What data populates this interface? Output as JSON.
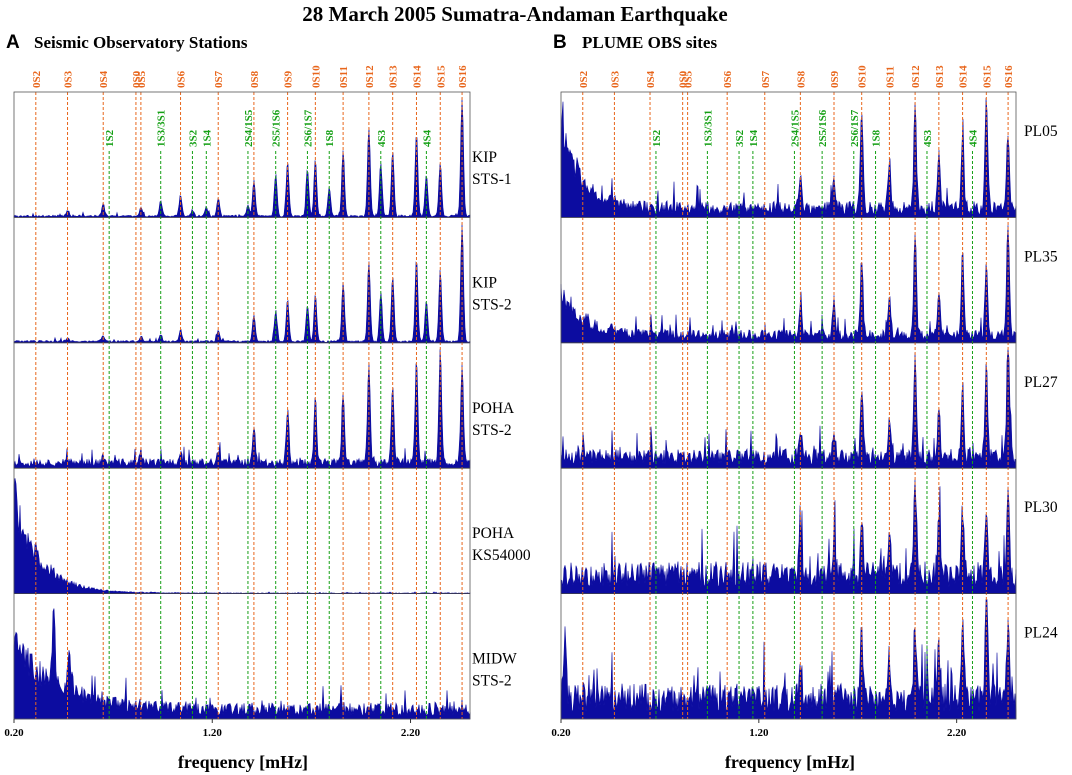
{
  "figure": {
    "title": "28 March 2005 Sumatra-Andaman Earthquake",
    "xlabel": "frequency [mHz]",
    "xticks": [
      "0.20",
      "1.20",
      "2.20"
    ],
    "overtone_color": "#e8661c",
    "toroidal_color": "#15a015",
    "spectrum_color": "#0c0ca0"
  },
  "chart_data": [
    {
      "type": "area",
      "panel_letter": "A",
      "panel_title": "Seismic Observatory Stations",
      "xlabel": "frequency [mHz]",
      "xlim": [
        0.2,
        2.5
      ],
      "xticks": [
        0.2,
        1.2,
        2.2
      ],
      "spheroidal_modes": [
        {
          "name": "0S2",
          "f": 0.31
        },
        {
          "name": "0S3",
          "f": 0.47
        },
        {
          "name": "0S4",
          "f": 0.65
        },
        {
          "name": "0S0",
          "f": 0.815
        },
        {
          "name": "0S5",
          "f": 0.84
        },
        {
          "name": "0S6",
          "f": 1.04
        },
        {
          "name": "0S7",
          "f": 1.23
        },
        {
          "name": "0S8",
          "f": 1.41
        },
        {
          "name": "0S9",
          "f": 1.58
        },
        {
          "name": "0S10",
          "f": 1.72
        },
        {
          "name": "0S11",
          "f": 1.86
        },
        {
          "name": "0S12",
          "f": 1.99
        },
        {
          "name": "0S13",
          "f": 2.11
        },
        {
          "name": "0S14",
          "f": 2.23
        },
        {
          "name": "0S15",
          "f": 2.35
        },
        {
          "name": "0S16",
          "f": 2.46
        }
      ],
      "other_modes": [
        {
          "name": "1S2",
          "f": 0.68
        },
        {
          "name": "1S3/3S1",
          "f": 0.94
        },
        {
          "name": "3S2",
          "f": 1.1
        },
        {
          "name": "1S4",
          "f": 1.17
        },
        {
          "name": "2S4/1S5",
          "f": 1.38
        },
        {
          "name": "2S5/1S6",
          "f": 1.52
        },
        {
          "name": "2S6/1S7",
          "f": 1.68
        },
        {
          "name": "1S8",
          "f": 1.79
        },
        {
          "name": "4S3",
          "f": 2.05
        },
        {
          "name": "4S4",
          "f": 2.28
        }
      ],
      "series": [
        {
          "name": "KIP STS-1",
          "label_lines": [
            "KIP",
            "STS-1"
          ],
          "noise": 0.015,
          "peaks": [
            [
              0.47,
              0.04
            ],
            [
              0.65,
              0.1
            ],
            [
              0.84,
              0.07
            ],
            [
              0.94,
              0.13
            ],
            [
              1.04,
              0.18
            ],
            [
              1.1,
              0.05
            ],
            [
              1.17,
              0.08
            ],
            [
              1.23,
              0.15
            ],
            [
              1.38,
              0.1
            ],
            [
              1.41,
              0.3
            ],
            [
              1.52,
              0.35
            ],
            [
              1.58,
              0.45
            ],
            [
              1.68,
              0.4
            ],
            [
              1.72,
              0.48
            ],
            [
              1.79,
              0.25
            ],
            [
              1.86,
              0.55
            ],
            [
              1.99,
              0.75
            ],
            [
              2.05,
              0.45
            ],
            [
              2.11,
              0.55
            ],
            [
              2.23,
              0.7
            ],
            [
              2.28,
              0.35
            ],
            [
              2.35,
              0.45
            ],
            [
              2.46,
              1.0
            ]
          ]
        },
        {
          "name": "KIP STS-2",
          "label_lines": [
            "KIP",
            "STS-2"
          ],
          "noise": 0.015,
          "peaks": [
            [
              0.47,
              0.03
            ],
            [
              0.65,
              0.05
            ],
            [
              0.84,
              0.04
            ],
            [
              0.94,
              0.06
            ],
            [
              1.04,
              0.1
            ],
            [
              1.23,
              0.09
            ],
            [
              1.41,
              0.22
            ],
            [
              1.52,
              0.25
            ],
            [
              1.58,
              0.35
            ],
            [
              1.68,
              0.3
            ],
            [
              1.72,
              0.4
            ],
            [
              1.86,
              0.5
            ],
            [
              1.99,
              0.68
            ],
            [
              2.05,
              0.4
            ],
            [
              2.11,
              0.55
            ],
            [
              2.23,
              0.7
            ],
            [
              2.28,
              0.35
            ],
            [
              2.35,
              0.6
            ],
            [
              2.46,
              1.0
            ]
          ]
        },
        {
          "name": "POHA STS-2",
          "label_lines": [
            "POHA",
            "STS-2"
          ],
          "noise": 0.06,
          "peaks": [
            [
              0.65,
              0.05
            ],
            [
              0.84,
              0.06
            ],
            [
              1.04,
              0.1
            ],
            [
              1.23,
              0.1
            ],
            [
              1.41,
              0.3
            ],
            [
              1.58,
              0.45
            ],
            [
              1.72,
              0.55
            ],
            [
              1.86,
              0.6
            ],
            [
              1.99,
              0.8
            ],
            [
              2.11,
              0.65
            ],
            [
              2.23,
              0.85
            ],
            [
              2.35,
              0.95
            ],
            [
              2.46,
              0.85
            ]
          ]
        },
        {
          "name": "POHA KS54000",
          "label_lines": [
            "POHA",
            "KS54000"
          ],
          "noise": 0.005,
          "decay": [
            1.0,
            0.13
          ],
          "peaks": []
        },
        {
          "name": "MIDW STS-2",
          "label_lines": [
            "MIDW",
            "STS-2"
          ],
          "noise": 0.1,
          "decay": [
            0.75,
            0.22
          ],
          "peaks": [
            [
              0.4,
              0.55
            ],
            [
              0.48,
              0.35
            ]
          ]
        }
      ]
    },
    {
      "type": "area",
      "panel_letter": "B",
      "panel_title": "PLUME OBS sites",
      "xlabel": "frequency [mHz]",
      "xlim": [
        0.2,
        2.5
      ],
      "xticks": [
        0.2,
        1.2,
        2.2
      ],
      "spheroidal_modes": [
        {
          "name": "0S2",
          "f": 0.31
        },
        {
          "name": "0S3",
          "f": 0.47
        },
        {
          "name": "0S4",
          "f": 0.65
        },
        {
          "name": "0S0",
          "f": 0.815
        },
        {
          "name": "0S5",
          "f": 0.84
        },
        {
          "name": "0S6",
          "f": 1.04
        },
        {
          "name": "0S7",
          "f": 1.23
        },
        {
          "name": "0S8",
          "f": 1.41
        },
        {
          "name": "0S9",
          "f": 1.58
        },
        {
          "name": "0S10",
          "f": 1.72
        },
        {
          "name": "0S11",
          "f": 1.86
        },
        {
          "name": "0S12",
          "f": 1.99
        },
        {
          "name": "0S13",
          "f": 2.11
        },
        {
          "name": "0S14",
          "f": 2.23
        },
        {
          "name": "0S15",
          "f": 2.35
        },
        {
          "name": "0S16",
          "f": 2.46
        }
      ],
      "other_modes": [
        {
          "name": "1S2",
          "f": 0.68
        },
        {
          "name": "1S3/3S1",
          "f": 0.94
        },
        {
          "name": "3S2",
          "f": 1.1
        },
        {
          "name": "1S4",
          "f": 1.17
        },
        {
          "name": "2S4/1S5",
          "f": 1.38
        },
        {
          "name": "2S5/1S6",
          "f": 1.52
        },
        {
          "name": "2S6/1S7",
          "f": 1.68
        },
        {
          "name": "1S8",
          "f": 1.79
        },
        {
          "name": "4S3",
          "f": 2.05
        },
        {
          "name": "4S4",
          "f": 2.28
        }
      ],
      "series": [
        {
          "name": "PL05",
          "label_lines": [
            "PL05"
          ],
          "noise": 0.1,
          "decay": [
            0.85,
            0.1
          ],
          "peaks": [
            [
              1.41,
              0.3
            ],
            [
              1.58,
              0.25
            ],
            [
              1.72,
              0.8
            ],
            [
              1.86,
              0.4
            ],
            [
              1.99,
              0.85
            ],
            [
              2.11,
              0.45
            ],
            [
              2.23,
              0.6
            ],
            [
              2.35,
              0.95
            ],
            [
              2.46,
              0.65
            ]
          ]
        },
        {
          "name": "PL35",
          "label_lines": [
            "PL35"
          ],
          "noise": 0.08,
          "decay": [
            0.45,
            0.12
          ],
          "peaks": [
            [
              1.41,
              0.25
            ],
            [
              1.58,
              0.3
            ],
            [
              1.72,
              0.65
            ],
            [
              1.86,
              0.35
            ],
            [
              1.99,
              0.85
            ],
            [
              2.11,
              0.35
            ],
            [
              2.23,
              0.7
            ],
            [
              2.35,
              0.6
            ],
            [
              2.46,
              0.95
            ]
          ]
        },
        {
          "name": "PL27",
          "label_lines": [
            "PL27"
          ],
          "noise": 0.12,
          "peaks": [
            [
              1.41,
              0.25
            ],
            [
              1.58,
              0.25
            ],
            [
              1.72,
              0.6
            ],
            [
              1.86,
              0.3
            ],
            [
              1.99,
              0.9
            ],
            [
              2.11,
              0.4
            ],
            [
              2.23,
              0.6
            ],
            [
              2.35,
              0.8
            ],
            [
              2.46,
              1.0
            ]
          ]
        },
        {
          "name": "PL30",
          "label_lines": [
            "PL30"
          ],
          "noise": 0.2,
          "peaks": [
            [
              1.41,
              0.3
            ],
            [
              1.58,
              0.3
            ],
            [
              1.72,
              0.45
            ],
            [
              1.86,
              0.4
            ],
            [
              1.99,
              0.85
            ],
            [
              2.11,
              0.45
            ],
            [
              2.23,
              0.55
            ],
            [
              2.35,
              0.6
            ],
            [
              2.46,
              0.65
            ]
          ]
        },
        {
          "name": "PL24",
          "label_lines": [
            "PL24"
          ],
          "noise": 0.22,
          "peaks": [
            [
              0.22,
              0.6
            ],
            [
              1.41,
              0.35
            ],
            [
              1.72,
              0.55
            ],
            [
              1.86,
              0.35
            ],
            [
              1.99,
              0.65
            ],
            [
              2.11,
              0.45
            ],
            [
              2.23,
              0.7
            ],
            [
              2.35,
              0.9
            ],
            [
              2.46,
              0.55
            ]
          ]
        }
      ]
    }
  ]
}
